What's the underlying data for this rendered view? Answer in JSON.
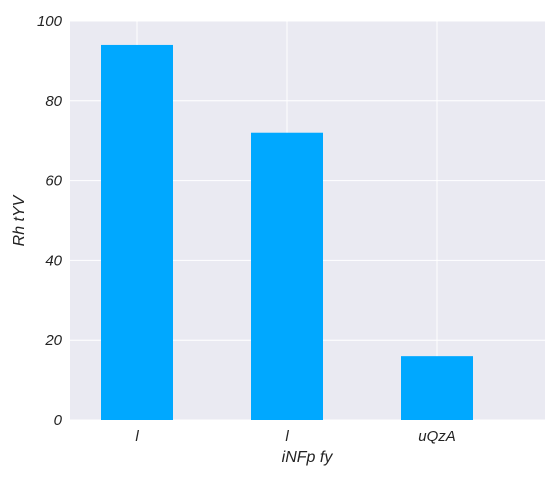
{
  "chart_data": {
    "type": "bar",
    "categories": [
      "l",
      "l",
      "uQzA"
    ],
    "values": [
      94,
      72,
      16
    ],
    "xlabel": "iNFp fy",
    "ylabel": "Rh tYV",
    "ylim": [
      0,
      100
    ],
    "yticks": [
      0,
      20,
      40,
      60,
      80,
      100
    ],
    "grid": true,
    "legend": "none",
    "colors": {
      "bar": "#00a8ff",
      "plot_background": "#eaeaf2",
      "grid": "#ffffff"
    }
  }
}
